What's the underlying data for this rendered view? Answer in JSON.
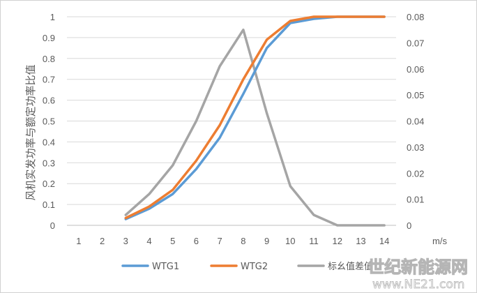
{
  "chart_data": {
    "type": "line",
    "title": "",
    "xlabel": "m/s",
    "ylabel": "风机实发功率与额定功率比值",
    "categories": [
      "1",
      "2",
      "3",
      "4",
      "5",
      "6",
      "7",
      "8",
      "9",
      "10",
      "11",
      "12",
      "13",
      "14"
    ],
    "y_left": {
      "lim": [
        0,
        1
      ],
      "ticks": [
        "0",
        "0.1",
        "0.2",
        "0.3",
        "0.4",
        "0.5",
        "0.6",
        "0.7",
        "0.8",
        "0.9",
        "1"
      ]
    },
    "y_right": {
      "lim": [
        0,
        0.08
      ],
      "ticks": [
        "0",
        "0.01",
        "0.02",
        "0.03",
        "0.04",
        "0.05",
        "0.06",
        "0.07",
        "0.08"
      ]
    },
    "grid": "horizontal",
    "legend_position": "bottom",
    "series": [
      {
        "name": "WTG1",
        "axis": "left",
        "color": "#5b9bd5",
        "x": [
          3,
          4,
          5,
          6,
          7,
          8,
          9,
          10,
          11,
          12,
          13,
          14
        ],
        "values": [
          0.03,
          0.08,
          0.15,
          0.27,
          0.42,
          0.63,
          0.85,
          0.97,
          0.99,
          1.0,
          1.0,
          1.0
        ]
      },
      {
        "name": "WTG2",
        "axis": "left",
        "color": "#ed7d31",
        "x": [
          3,
          4,
          5,
          6,
          7,
          8,
          9,
          10,
          11,
          12,
          13,
          14
        ],
        "values": [
          0.035,
          0.09,
          0.17,
          0.31,
          0.48,
          0.7,
          0.89,
          0.98,
          1.0,
          1.0,
          1.0,
          1.0
        ]
      },
      {
        "name": "标幺值差值",
        "axis": "right",
        "color": "#a5a5a5",
        "x": [
          3,
          4,
          5,
          6,
          7,
          8,
          9,
          10,
          11,
          12,
          13,
          14
        ],
        "values": [
          0.004,
          0.012,
          0.023,
          0.04,
          0.061,
          0.075,
          0.043,
          0.015,
          0.004,
          0.0,
          0.0,
          0.0
        ]
      }
    ]
  },
  "watermark": {
    "title": "世纪新能源网",
    "url": "www.NE21.com"
  }
}
